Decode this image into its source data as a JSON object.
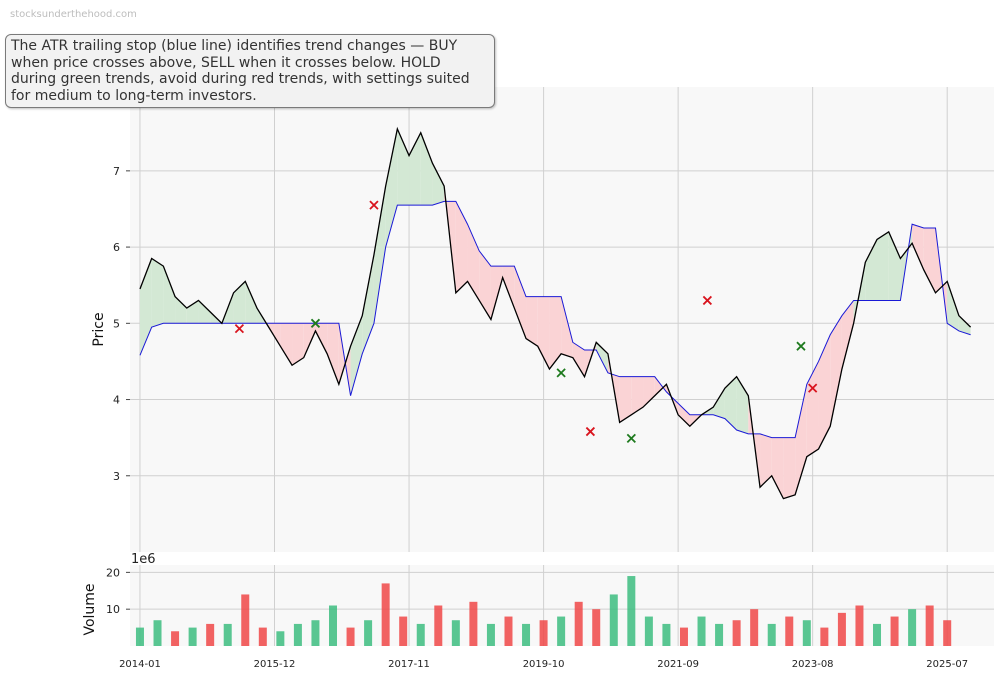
{
  "watermark": "stocksunderthehood.com",
  "annotation": "The ATR trailing stop (blue line) identifies trend changes — BUY when price crosses above, SELL when it crosses below. HOLD during green trends, avoid during red trends, with settings suited for medium to long-term investors.",
  "colors": {
    "price_line": "#000000",
    "stop_line": "#1a1ad6",
    "green_fill": "#d3e8d4",
    "red_fill": "#fad3d5",
    "buy_marker": "#1e7a1e",
    "sell_marker": "#d9141e",
    "volume_up": "#3dbd80",
    "volume_down": "#f04848",
    "grid": "#d0d0d0",
    "plot_bg": "#f8f8f8"
  },
  "chart_data": [
    {
      "type": "line",
      "title": "",
      "ylabel": "Price",
      "xlim": [
        "2013-11-10",
        "2026-03-01"
      ],
      "ylim": [
        2.0,
        8.1
      ],
      "grid": true,
      "x_ticks": [
        "2014-01",
        "2015-12",
        "2017-11",
        "2019-10",
        "2021-09",
        "2023-08",
        "2025-07"
      ],
      "y_ticks": [
        3,
        4,
        5,
        6,
        7
      ],
      "series": [
        {
          "role": "price",
          "x": [
            "2014-01",
            "2014-03",
            "2014-05",
            "2014-07",
            "2014-09",
            "2014-11",
            "2015-01",
            "2015-03",
            "2015-05",
            "2015-07",
            "2015-09",
            "2015-11",
            "2016-01",
            "2016-03",
            "2016-05",
            "2016-07",
            "2016-09",
            "2016-11",
            "2017-01",
            "2017-03",
            "2017-05",
            "2017-07",
            "2017-09",
            "2017-11",
            "2018-01",
            "2018-03",
            "2018-05",
            "2018-07",
            "2018-09",
            "2018-11",
            "2019-01",
            "2019-03",
            "2019-05",
            "2019-07",
            "2019-09",
            "2019-11",
            "2020-01",
            "2020-03",
            "2020-05",
            "2020-07",
            "2020-09",
            "2020-11",
            "2021-01",
            "2021-03",
            "2021-05",
            "2021-07",
            "2021-09",
            "2021-11",
            "2022-01",
            "2022-03",
            "2022-05",
            "2022-07",
            "2022-09",
            "2022-11",
            "2023-01",
            "2023-03",
            "2023-05",
            "2023-07",
            "2023-09",
            "2023-11",
            "2024-01",
            "2024-03",
            "2024-05",
            "2024-07",
            "2024-09",
            "2024-11",
            "2025-01",
            "2025-03",
            "2025-05",
            "2025-07",
            "2025-09",
            "2025-11"
          ],
          "y": [
            5.45,
            5.85,
            5.75,
            5.35,
            5.2,
            5.3,
            5.15,
            5.0,
            5.4,
            5.55,
            5.2,
            4.95,
            4.7,
            4.45,
            4.55,
            4.9,
            4.6,
            4.2,
            4.7,
            5.1,
            5.9,
            6.8,
            7.55,
            7.2,
            7.5,
            7.1,
            6.8,
            5.4,
            5.55,
            5.3,
            5.05,
            5.6,
            5.2,
            4.8,
            4.7,
            4.4,
            4.6,
            4.55,
            4.3,
            4.75,
            4.6,
            3.7,
            3.8,
            3.9,
            4.05,
            4.2,
            3.8,
            3.65,
            3.8,
            3.9,
            4.15,
            4.3,
            4.05,
            2.85,
            3.0,
            2.7,
            2.75,
            3.25,
            3.35,
            3.65,
            4.4,
            5.0,
            5.8,
            6.1,
            6.2,
            5.85,
            6.05,
            5.7,
            5.4,
            5.55,
            5.1,
            4.95
          ]
        },
        {
          "role": "atr_trailing_stop",
          "x": [
            "2014-01",
            "2014-03",
            "2014-05",
            "2014-07",
            "2014-09",
            "2014-11",
            "2015-01",
            "2015-03",
            "2015-05",
            "2015-07",
            "2015-09",
            "2015-11",
            "2016-01",
            "2016-03",
            "2016-05",
            "2016-07",
            "2016-09",
            "2016-11",
            "2017-01",
            "2017-03",
            "2017-05",
            "2017-07",
            "2017-09",
            "2017-11",
            "2018-01",
            "2018-03",
            "2018-05",
            "2018-07",
            "2018-09",
            "2018-11",
            "2019-01",
            "2019-03",
            "2019-05",
            "2019-07",
            "2019-09",
            "2019-11",
            "2020-01",
            "2020-03",
            "2020-05",
            "2020-07",
            "2020-09",
            "2020-11",
            "2021-01",
            "2021-03",
            "2021-05",
            "2021-07",
            "2021-09",
            "2021-11",
            "2022-01",
            "2022-03",
            "2022-05",
            "2022-07",
            "2022-09",
            "2022-11",
            "2023-01",
            "2023-03",
            "2023-05",
            "2023-07",
            "2023-09",
            "2023-11",
            "2024-01",
            "2024-03",
            "2024-05",
            "2024-07",
            "2024-09",
            "2024-11",
            "2025-01",
            "2025-03",
            "2025-05",
            "2025-07",
            "2025-09",
            "2025-11"
          ],
          "y": [
            4.58,
            4.95,
            5.0,
            5.0,
            5.0,
            5.0,
            5.0,
            5.0,
            5.0,
            5.0,
            5.0,
            5.0,
            5.0,
            5.0,
            5.0,
            5.0,
            5.0,
            5.0,
            4.05,
            4.6,
            5.0,
            6.0,
            6.55,
            6.55,
            6.55,
            6.55,
            6.6,
            6.6,
            6.3,
            5.95,
            5.75,
            5.75,
            5.75,
            5.35,
            5.35,
            5.35,
            5.35,
            4.75,
            4.65,
            4.65,
            4.35,
            4.3,
            4.3,
            4.3,
            4.3,
            4.1,
            3.95,
            3.8,
            3.8,
            3.8,
            3.75,
            3.6,
            3.55,
            3.55,
            3.5,
            3.5,
            3.5,
            4.2,
            4.5,
            4.85,
            5.1,
            5.3,
            5.3,
            5.3,
            5.3,
            5.3,
            6.3,
            6.25,
            6.25,
            5.0,
            4.9,
            4.85
          ]
        }
      ],
      "signals": [
        {
          "type": "SELL",
          "x": "2015-06",
          "y": 4.93
        },
        {
          "type": "BUY",
          "x": "2016-07",
          "y": 5.0
        },
        {
          "type": "SELL",
          "x": "2017-05",
          "y": 6.55
        },
        {
          "type": "BUY",
          "x": "2020-01",
          "y": 4.35
        },
        {
          "type": "SELL",
          "x": "2020-06",
          "y": 3.58
        },
        {
          "type": "BUY",
          "x": "2021-01",
          "y": 3.49
        },
        {
          "type": "SELL",
          "x": "2022-02",
          "y": 5.3
        },
        {
          "type": "BUY",
          "x": "2023-06",
          "y": 4.7
        },
        {
          "type": "SELL",
          "x": "2023-08",
          "y": 4.15
        }
      ]
    },
    {
      "type": "bar",
      "ylabel": "Volume",
      "y_unit": "1e6",
      "ylim": [
        0,
        22
      ],
      "y_ticks": [
        10,
        20
      ],
      "grid": true,
      "x": [
        "2014-01",
        "2014-04",
        "2014-07",
        "2014-10",
        "2015-01",
        "2015-04",
        "2015-07",
        "2015-10",
        "2016-01",
        "2016-04",
        "2016-07",
        "2016-10",
        "2017-01",
        "2017-04",
        "2017-07",
        "2017-10",
        "2018-01",
        "2018-04",
        "2018-07",
        "2018-10",
        "2019-01",
        "2019-04",
        "2019-07",
        "2019-10",
        "2020-01",
        "2020-04",
        "2020-07",
        "2020-10",
        "2021-01",
        "2021-04",
        "2021-07",
        "2021-10",
        "2022-01",
        "2022-04",
        "2022-07",
        "2022-10",
        "2023-01",
        "2023-04",
        "2023-07",
        "2023-10",
        "2024-01",
        "2024-04",
        "2024-07",
        "2024-10",
        "2025-01",
        "2025-04",
        "2025-07"
      ],
      "values": [
        5,
        7,
        4,
        5,
        6,
        6,
        14,
        5,
        4,
        6,
        7,
        11,
        5,
        7,
        17,
        8,
        6,
        11,
        7,
        12,
        6,
        8,
        6,
        7,
        8,
        12,
        10,
        14,
        19,
        8,
        6,
        5,
        8,
        6,
        7,
        10,
        6,
        8,
        7,
        5,
        9,
        11,
        6,
        8,
        10,
        11,
        7
      ],
      "up": [
        true,
        true,
        false,
        true,
        false,
        true,
        false,
        false,
        true,
        true,
        true,
        true,
        false,
        true,
        false,
        false,
        true,
        false,
        true,
        false,
        true,
        false,
        true,
        false,
        true,
        false,
        false,
        true,
        true,
        true,
        true,
        false,
        true,
        true,
        false,
        false,
        true,
        false,
        true,
        false,
        false,
        false,
        true,
        false,
        true,
        false,
        false
      ]
    }
  ]
}
